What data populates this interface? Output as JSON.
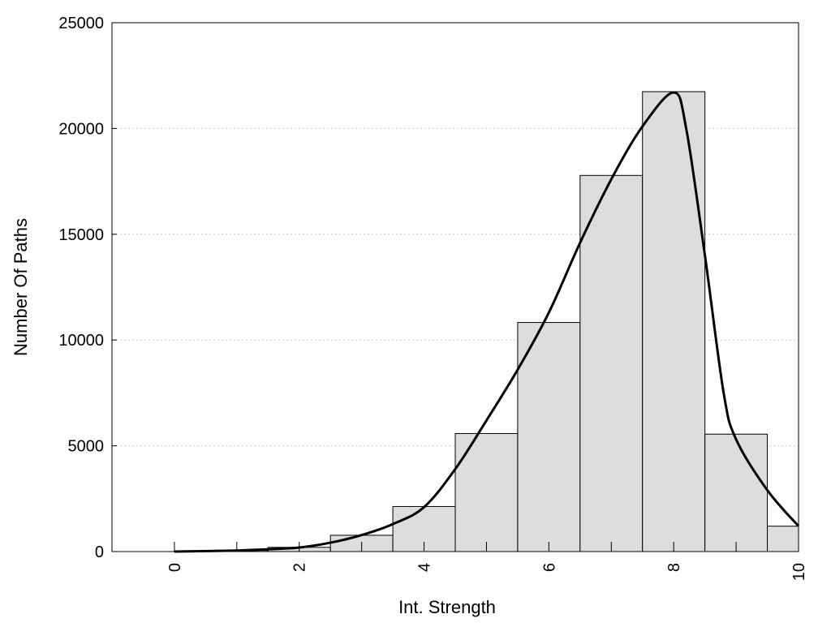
{
  "chart_data": {
    "type": "bar",
    "xlabel": "Int. Strength",
    "ylabel": "Number Of Paths",
    "xlim": [
      -1,
      10
    ],
    "ylim": [
      0,
      25000
    ],
    "x_ticks": [
      "0",
      "2",
      "4",
      "6",
      "8",
      "10"
    ],
    "y_ticks": [
      "0",
      "5000",
      "10000",
      "15000",
      "20000",
      "25000"
    ],
    "grid": "horizontal dotted",
    "bar_color": "#dddddd",
    "line_color": "#000000",
    "bins": [
      {
        "x": 0,
        "value": 0
      },
      {
        "x": 1,
        "value": 50
      },
      {
        "x": 2,
        "value": 200
      },
      {
        "x": 3,
        "value": 770
      },
      {
        "x": 4,
        "value": 2130
      },
      {
        "x": 5,
        "value": 5580
      },
      {
        "x": 6,
        "value": 10830
      },
      {
        "x": 7,
        "value": 17780
      },
      {
        "x": 8,
        "value": 21740
      },
      {
        "x": 9,
        "value": 5550
      },
      {
        "x": 10,
        "value": 1200
      }
    ],
    "density_curve": {
      "x": [
        0,
        1,
        1.5,
        2,
        2.5,
        3,
        3.5,
        4,
        4.5,
        5,
        5.5,
        6,
        6.5,
        7,
        7.5,
        8,
        8.2,
        8.5,
        8.8,
        9,
        9.5,
        10
      ],
      "y": [
        0,
        50,
        110,
        190,
        420,
        780,
        1300,
        2100,
        3900,
        6200,
        8600,
        11300,
        14600,
        17600,
        20100,
        21700,
        20000,
        14000,
        7500,
        5300,
        2900,
        1200
      ]
    }
  }
}
